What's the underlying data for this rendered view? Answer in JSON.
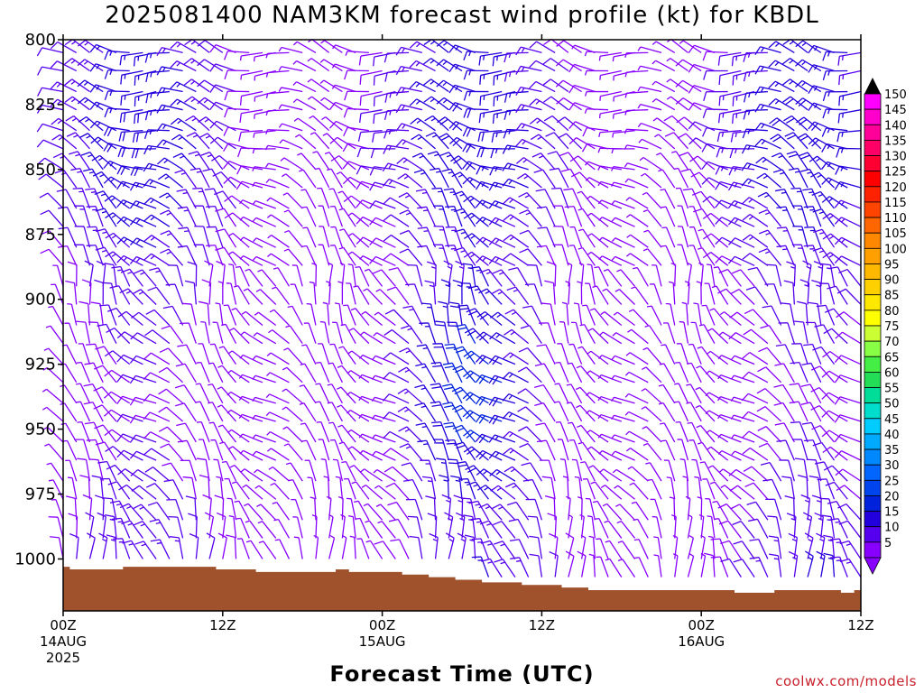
{
  "title": "2025081400 NAM3KM forecast wind profile (kt) for KBDL",
  "credit": "coolwx.com/models",
  "chart_data": {
    "type": "wind_barb_time_height",
    "title": "2025081400 NAM3KM forecast wind profile (kt) for KBDL",
    "xlabel": "Forecast Time (UTC)",
    "ylabel": "",
    "y_axis": {
      "ticks": [
        800,
        825,
        850,
        875,
        900,
        925,
        950,
        975,
        1000
      ],
      "ylim": [
        800,
        1020
      ],
      "inverted": true
    },
    "x_axis": {
      "ticks": [
        {
          "hour": 0,
          "lines": [
            "00Z",
            "14AUG",
            "2025"
          ]
        },
        {
          "hour": 12,
          "lines": [
            "12Z"
          ]
        },
        {
          "hour": 24,
          "lines": [
            "00Z",
            "15AUG"
          ]
        },
        {
          "hour": 36,
          "lines": [
            "12Z"
          ]
        },
        {
          "hour": 48,
          "lines": [
            "00Z",
            "16AUG"
          ]
        },
        {
          "hour": 60,
          "lines": [
            "12Z"
          ]
        }
      ],
      "xlim": [
        0,
        60
      ],
      "step_hours": 1
    },
    "levels_hpa": [
      805,
      812,
      820,
      827,
      835,
      842,
      850,
      857,
      865,
      872,
      880,
      887,
      895,
      902,
      910,
      917,
      925,
      932,
      940,
      947,
      955,
      962,
      970,
      977,
      985,
      992,
      1000,
      1007,
      1015
    ],
    "surface_pressure_hpa": [
      1003,
      1004,
      1004,
      1004,
      1004,
      1003,
      1003,
      1003,
      1003,
      1003,
      1003,
      1003,
      1004,
      1004,
      1004,
      1005,
      1005,
      1005,
      1005,
      1005,
      1005,
      1004,
      1005,
      1005,
      1005,
      1005,
      1006,
      1006,
      1007,
      1007,
      1008,
      1008,
      1009,
      1009,
      1009,
      1010,
      1010,
      1010,
      1011,
      1011,
      1012,
      1012,
      1012,
      1012,
      1012,
      1012,
      1012,
      1012,
      1012,
      1012,
      1012,
      1013,
      1013,
      1013,
      1012,
      1012,
      1012,
      1012,
      1012,
      1013,
      1012
    ],
    "wind_model": {
      "note": "barb direction (deg, from) and speed (kt) estimated from the barb field",
      "direction_low": 330,
      "direction_high": 300,
      "speed_scale": 1
    },
    "colorbar": {
      "labels": [
        150,
        145,
        140,
        135,
        130,
        125,
        120,
        115,
        110,
        105,
        100,
        95,
        90,
        85,
        80,
        75,
        70,
        65,
        60,
        55,
        50,
        45,
        40,
        35,
        30,
        25,
        20,
        15,
        10,
        5
      ],
      "colors": [
        "#ff00ff",
        "#ff00cc",
        "#ff0099",
        "#ff0066",
        "#ff0033",
        "#ff0000",
        "#ff2200",
        "#ff4400",
        "#ff6600",
        "#ff8800",
        "#ffa000",
        "#ffb800",
        "#ffd000",
        "#ffe800",
        "#ffff00",
        "#ccff33",
        "#88ff44",
        "#44ee44",
        "#22dd55",
        "#00dd99",
        "#00ddcc",
        "#00ccff",
        "#00aaff",
        "#0088ff",
        "#0066ff",
        "#0044ee",
        "#0022dd",
        "#2200dd",
        "#5500ee",
        "#8800ff"
      ]
    },
    "ground_color": "#a0522d"
  }
}
